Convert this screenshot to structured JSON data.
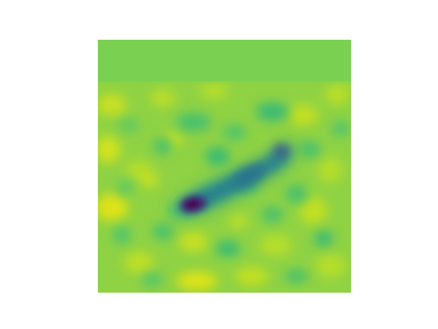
{
  "figure": {
    "colormap": "viridis",
    "top_band_color": "#7ad151",
    "background_color": "#ffffff",
    "field_base_color": "#8fd244",
    "feature_dark_color": "#440154"
  }
}
